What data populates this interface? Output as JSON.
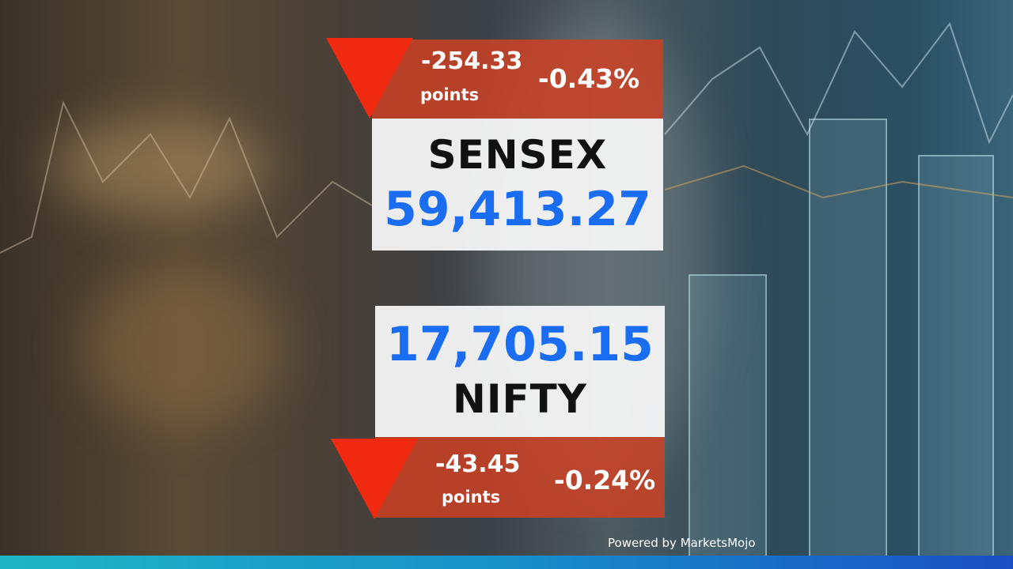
{
  "sensex": {
    "name": "SENSEX",
    "value": "59,413.27",
    "change_points": "-254.33",
    "points_label": "points",
    "change_percent": "-0.43%",
    "direction": "down"
  },
  "nifty": {
    "name": "NIFTY",
    "value": "17,705.15",
    "change_points": "-43.45",
    "points_label": "points",
    "change_percent": "-0.24%",
    "direction": "down"
  },
  "footer": {
    "powered_by": "Powered by MarketsMojo"
  },
  "colors": {
    "value_blue": "#1a6cf0",
    "down_red": "#f02a10",
    "band_red": "#cd4123",
    "footer_start": "#1fb5c4",
    "footer_end": "#1a4fc4"
  }
}
